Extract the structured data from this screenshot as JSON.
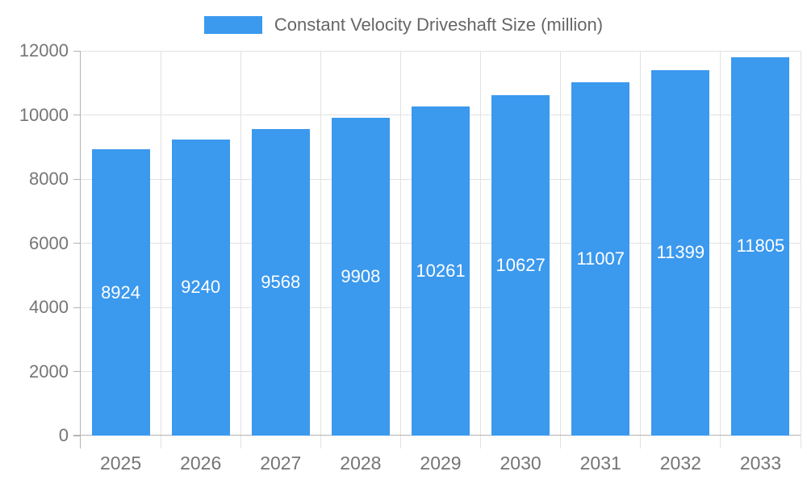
{
  "chart_data": {
    "type": "bar",
    "title": "Constant Velocity Driveshaft Size (million)",
    "categories": [
      "2025",
      "2026",
      "2027",
      "2028",
      "2029",
      "2030",
      "2031",
      "2032",
      "2033"
    ],
    "series": [
      {
        "name": "Constant Velocity Driveshaft Size (million)",
        "values": [
          8924,
          9240,
          9568,
          9908,
          10261,
          10627,
          11007,
          11399,
          11805
        ]
      }
    ],
    "xlabel": "",
    "ylabel": "",
    "ylim": [
      0,
      12000
    ],
    "y_tick_step": 2000,
    "y_tick_labels": [
      "0",
      "2000",
      "4000",
      "6000",
      "8000",
      "10000",
      "12000"
    ],
    "grid": true,
    "legend_position": "top",
    "bar_labels_shown": true,
    "bar_label_position": "center"
  },
  "legend": {
    "label": "Constant Velocity Driveshaft Size (million)"
  },
  "colors": {
    "bar": "#3B99EE",
    "grid": "#E2E2E2",
    "axis": "#B3B3B3",
    "axis_text": "#757575",
    "legend_text": "#666666",
    "bar_label": "#FFFFFF",
    "background": "#FFFFFF"
  }
}
